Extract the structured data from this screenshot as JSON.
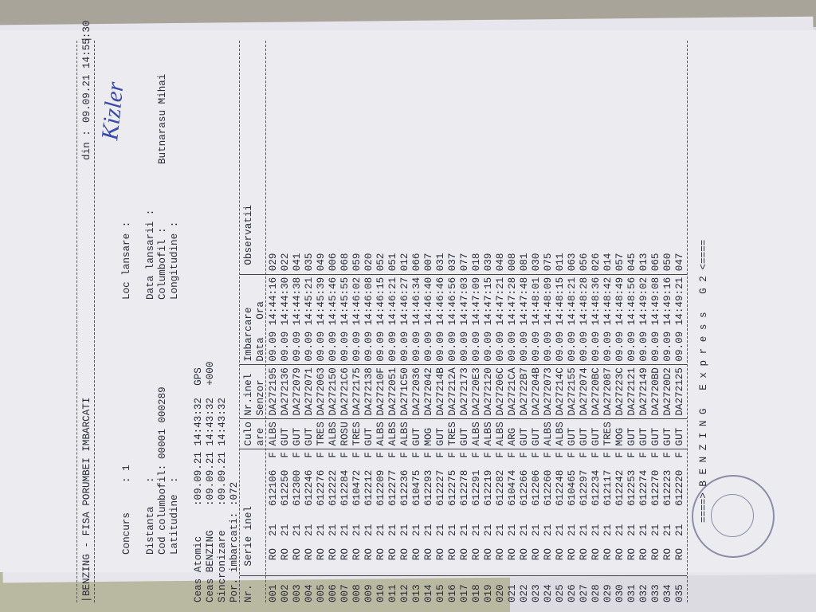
{
  "header": {
    "title": "BENZING - FISA PORUMBEI IMBARCATI",
    "date_label": "din :",
    "date_value": "09.09.21 14:55:30"
  },
  "info": {
    "concurs_label": "Concurs",
    "concurs_value": ": 1",
    "loc_label": "Loc lansare :",
    "loc_value": "Kizler",
    "distanta_label": "Distanta",
    "distanta_value": ":",
    "data_lansarii_label": "Data lansarii :",
    "cod_label": "Cod columbofil:",
    "cod_value": "00001 000289",
    "columbofil_label": "Columbofil :",
    "columbofil_value": "Butnarasu Mihai",
    "latitudine_label": "Latitudine",
    "latitudine_value": ":",
    "longitudine_label": "Longitudine :"
  },
  "clocks": [
    [
      "Ceas Atomic",
      "09.09.21 14:43:32",
      "GPS"
    ],
    [
      "Ceas BENZING",
      "09.09.21 14:43:32",
      "+000"
    ],
    [
      "Sincronizare",
      "09.09.21 14:43:32",
      ""
    ],
    [
      "Por. imbarcati:",
      "072",
      ""
    ]
  ],
  "table": {
    "header": [
      "Nr.",
      "Serie inel",
      "Culo",
      "are",
      "Nr.inel",
      "Senzor",
      "Imbarcare",
      "Data",
      "Ora",
      "Observatii"
    ],
    "rows": [
      [
        "001",
        "RO",
        "21",
        "612106",
        "F",
        "ALBS",
        "DA272195",
        "09.09",
        "14:44:16",
        "029"
      ],
      [
        "002",
        "RO",
        "21",
        "612250",
        "F",
        "GUT",
        "DA272136",
        "09.09",
        "14:44:30",
        "022"
      ],
      [
        "003",
        "RO",
        "21",
        "612300",
        "F",
        "GUT",
        "DA272079",
        "09.09",
        "14:44:38",
        "041"
      ],
      [
        "004",
        "RO",
        "21",
        "612246",
        "F",
        "GUT",
        "DA272071",
        "09.09",
        "14:45:21",
        "035"
      ],
      [
        "005",
        "RO",
        "21",
        "612276",
        "F",
        "TRES",
        "DA272063",
        "09.09",
        "14:45:39",
        "049"
      ],
      [
        "006",
        "RO",
        "21",
        "612222",
        "F",
        "ALBS",
        "DA272150",
        "09.09",
        "14:45:46",
        "006"
      ],
      [
        "007",
        "RO",
        "21",
        "612284",
        "F",
        "ROSU",
        "DA2721C6",
        "09.09",
        "14:45:55",
        "068"
      ],
      [
        "008",
        "RO",
        "21",
        "610472",
        "F",
        "TRES",
        "DA272175",
        "09.09",
        "14:46:02",
        "059"
      ],
      [
        "009",
        "RO",
        "21",
        "612212",
        "F",
        "GUT",
        "DA272138",
        "09.09",
        "14:46:08",
        "020"
      ],
      [
        "010",
        "RO",
        "21",
        "612209",
        "F",
        "ALBS",
        "DA27210F",
        "09.09",
        "14:46:15",
        "052"
      ],
      [
        "011",
        "RO",
        "21",
        "612277",
        "F",
        "ALBS",
        "DA272051",
        "09.09",
        "14:46:21",
        "051"
      ],
      [
        "012",
        "RO",
        "21",
        "612236",
        "F",
        "ALBS",
        "DA271C50",
        "09.09",
        "14:46:27",
        "012"
      ],
      [
        "013",
        "RO",
        "21",
        "610475",
        "F",
        "GUT",
        "DA272036",
        "09.09",
        "14:46:34",
        "066"
      ],
      [
        "014",
        "RO",
        "21",
        "612293",
        "F",
        "MOG",
        "DA272042",
        "09.09",
        "14:46:40",
        "007"
      ],
      [
        "015",
        "RO",
        "21",
        "612227",
        "F",
        "GUT",
        "DA27214B",
        "09.09",
        "14:46:46",
        "031"
      ],
      [
        "016",
        "RO",
        "21",
        "612275",
        "F",
        "TRES",
        "DA27212A",
        "09.09",
        "14:46:56",
        "037"
      ],
      [
        "017",
        "RO",
        "21",
        "612278",
        "F",
        "GUT",
        "DA272173",
        "09.09",
        "14:47:03",
        "077"
      ],
      [
        "018",
        "RO",
        "21",
        "612291",
        "F",
        "ALBS",
        "DA2720E3",
        "09.09",
        "14:47:09",
        "018"
      ],
      [
        "019",
        "RO",
        "21",
        "612219",
        "F",
        "ALBS",
        "DA272120",
        "09.09",
        "14:47:15",
        "039"
      ],
      [
        "020",
        "RO",
        "21",
        "612282",
        "F",
        "ALBS",
        "DA27206C",
        "09.09",
        "14:47:21",
        "048"
      ],
      [
        "021",
        "RO",
        "21",
        "610474",
        "F",
        "ARG",
        "DA2721CA",
        "09.09",
        "14:47:28",
        "008"
      ],
      [
        "022",
        "RO",
        "21",
        "612266",
        "F",
        "GUT",
        "DA2722B7",
        "09.09",
        "14:47:48",
        "081"
      ],
      [
        "023",
        "RO",
        "21",
        "612206",
        "F",
        "GUT",
        "DA27204B",
        "09.09",
        "14:48:01",
        "030"
      ],
      [
        "024",
        "RO",
        "21",
        "612260",
        "F",
        "ALBS",
        "DA272073",
        "09.09",
        "14:48:09",
        "075"
      ],
      [
        "025",
        "RO",
        "21",
        "612248",
        "F",
        "ALBS",
        "DA27214C",
        "09.09",
        "14:48:15",
        "011"
      ],
      [
        "026",
        "RO",
        "21",
        "610465",
        "F",
        "GUT",
        "DA272155",
        "09.09",
        "14:48:21",
        "063"
      ],
      [
        "027",
        "RO",
        "21",
        "612297",
        "F",
        "GUT",
        "DA272074",
        "09.09",
        "14:48:28",
        "056"
      ],
      [
        "028",
        "RO",
        "21",
        "612234",
        "F",
        "GUT",
        "DA2720BC",
        "09.09",
        "14:48:36",
        "026"
      ],
      [
        "029",
        "RO",
        "21",
        "612117",
        "F",
        "TRES",
        "DA272087",
        "09.09",
        "14:48:42",
        "014"
      ],
      [
        "030",
        "RO",
        "21",
        "612242",
        "F",
        "MOG",
        "DA27223C",
        "09.09",
        "14:48:49",
        "057"
      ],
      [
        "031",
        "RO",
        "21",
        "612253",
        "F",
        "GUT",
        "DA272121",
        "09.09",
        "14:48:56",
        "045"
      ],
      [
        "032",
        "RO",
        "21",
        "612274",
        "F",
        "GUT",
        "DA272149",
        "09.09",
        "14:49:02",
        "013"
      ],
      [
        "033",
        "RO",
        "21",
        "612270",
        "F",
        "GUT",
        "DA2720BD",
        "09.09",
        "14:49:08",
        "065"
      ],
      [
        "034",
        "RO",
        "21",
        "612223",
        "F",
        "GUT",
        "DA2720D2",
        "09.09",
        "14:49:16",
        "050"
      ],
      [
        "035",
        "RO",
        "21",
        "612220",
        "F",
        "GUT",
        "DA272125",
        "09.09",
        "14:49:21",
        "047"
      ]
    ]
  },
  "footer": "====> B E N Z I N G   E x p r e s s   G 2 <===="
}
